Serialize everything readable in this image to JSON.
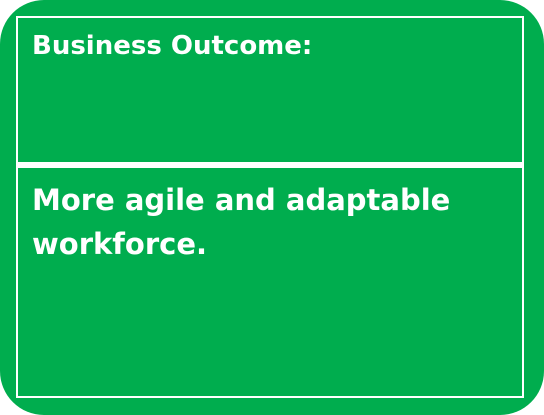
{
  "card": {
    "title": "Business Outcome:",
    "body": "More agile and adaptable workforce.",
    "colors": {
      "background": "#00ad4e",
      "text": "#ffffff",
      "border": "#ffffff"
    }
  }
}
